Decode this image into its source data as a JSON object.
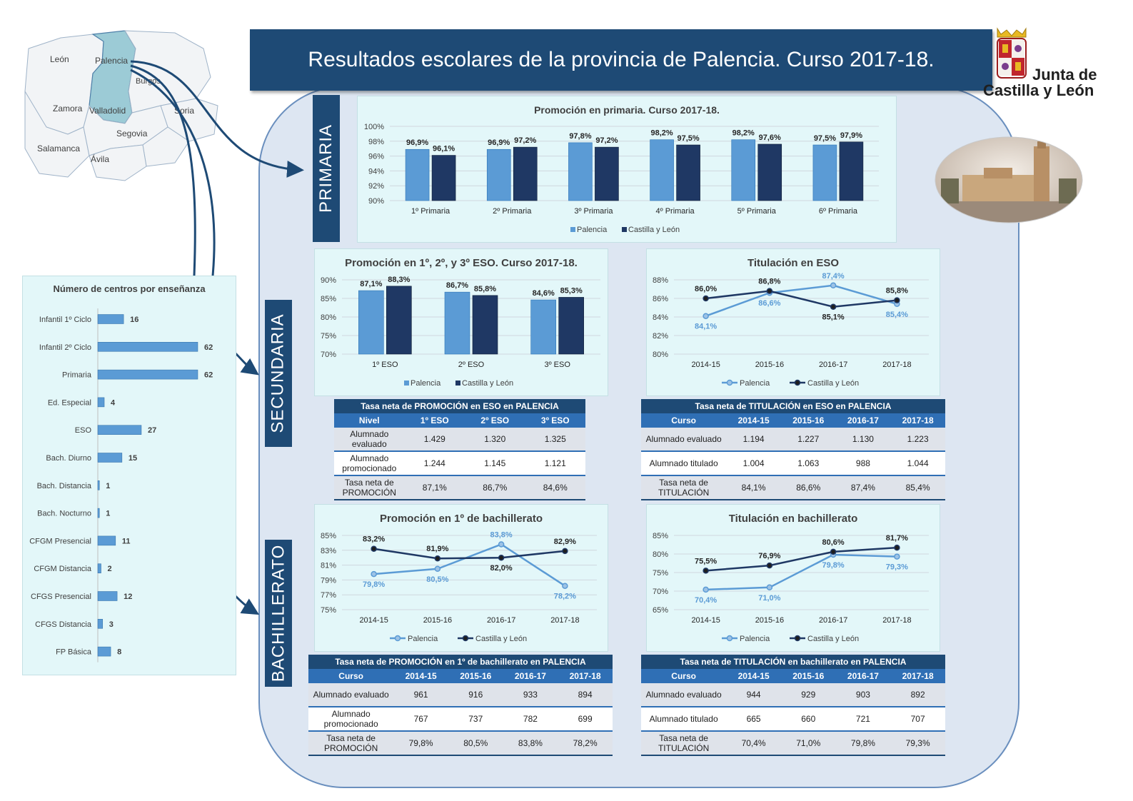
{
  "header": {
    "title": "Resultados escolares de la provincia de Palencia. Curso 2017-18."
  },
  "logo": {
    "line1": "Junta de",
    "line2": "Castilla y León"
  },
  "map": {
    "regions": [
      "León",
      "Palencia",
      "Burgos",
      "Zamora",
      "Valladolid",
      "Soria",
      "Segovia",
      "Salamanca",
      "Ávila"
    ]
  },
  "sections": {
    "primaria": "PRIMARIA",
    "secundaria": "SECUNDARIA",
    "bachillerato": "BACHILLERATO"
  },
  "colors": {
    "palencia": "#5b9bd5",
    "cyl": "#1f3864",
    "header": "#1e4a75",
    "panel": "#e3f7f9"
  },
  "legend": {
    "palencia": "Palencia",
    "cyl": "Castilla y León"
  },
  "chart_data": [
    {
      "id": "centros",
      "type": "bar",
      "orientation": "horizontal",
      "title": "Número de centros por enseñanza",
      "categories": [
        "Infantil 1º Ciclo",
        "Infantil 2º Ciclo",
        "Primaria",
        "Ed. Especial",
        "ESO",
        "Bach. Diurno",
        "Bach. Distancia",
        "Bach. Nocturno",
        "CFGM Presencial",
        "CFGM Distancia",
        "CFGS Presencial",
        "CFGS Distancia",
        "FP Básica"
      ],
      "values": [
        16,
        62,
        62,
        4,
        27,
        15,
        1,
        1,
        11,
        2,
        12,
        3,
        8
      ]
    },
    {
      "id": "primaria",
      "type": "bar",
      "title": "Promoción en primaria. Curso 2017-18.",
      "categories": [
        "1º Primaria",
        "2º Primaria",
        "3º Primaria",
        "4º Primaria",
        "5º Primaria",
        "6º Primaria"
      ],
      "series": [
        {
          "name": "Palencia",
          "values": [
            96.9,
            96.9,
            97.8,
            98.2,
            98.2,
            97.5
          ]
        },
        {
          "name": "Castilla y León",
          "values": [
            96.1,
            97.2,
            97.2,
            97.5,
            97.6,
            97.9
          ]
        }
      ],
      "labels": [
        [
          "96,9%",
          "96,9%",
          "97,8%",
          "98,2%",
          "98,2%",
          "97,5%"
        ],
        [
          "96,1%",
          "97,2%",
          "97,2%",
          "97,5%",
          "97,6%",
          "97,9%"
        ]
      ],
      "yticks": [
        "90%",
        "92%",
        "94%",
        "96%",
        "98%",
        "100%"
      ],
      "ylim": [
        90,
        100
      ]
    },
    {
      "id": "eso_prom",
      "type": "bar",
      "title": "Promoción en 1º, 2º, y 3º ESO. Curso 2017-18.",
      "categories": [
        "1º ESO",
        "2º ESO",
        "3º ESO"
      ],
      "series": [
        {
          "name": "Palencia",
          "values": [
            87.1,
            86.7,
            84.6
          ]
        },
        {
          "name": "Castilla y León",
          "values": [
            88.3,
            85.8,
            85.3
          ]
        }
      ],
      "labels": [
        [
          "87,1%",
          "86,7%",
          "84,6%"
        ],
        [
          "88,3%",
          "85,8%",
          "85,3%"
        ]
      ],
      "yticks": [
        "70%",
        "75%",
        "80%",
        "85%",
        "90%"
      ],
      "ylim": [
        70,
        90
      ]
    },
    {
      "id": "eso_tit",
      "type": "line",
      "title": "Titulación en ESO",
      "categories": [
        "2014-15",
        "2015-16",
        "2016-17",
        "2017-18"
      ],
      "series": [
        {
          "name": "Palencia",
          "values": [
            84.1,
            86.6,
            87.4,
            85.4
          ]
        },
        {
          "name": "Castilla y León",
          "values": [
            86.0,
            86.8,
            85.1,
            85.8
          ]
        }
      ],
      "labels": [
        [
          "84,1%",
          "86,6%",
          "87,4%",
          "85,4%"
        ],
        [
          "86,0%",
          "86,8%",
          "85,1%",
          "85,8%"
        ]
      ],
      "yticks": [
        "80%",
        "82%",
        "84%",
        "86%",
        "88%"
      ],
      "ylim": [
        80,
        88
      ]
    },
    {
      "id": "bach_prom",
      "type": "line",
      "title": "Promoción en 1º de bachillerato",
      "categories": [
        "2014-15",
        "2015-16",
        "2016-17",
        "2017-18"
      ],
      "series": [
        {
          "name": "Palencia",
          "values": [
            79.8,
            80.5,
            83.8,
            78.2
          ]
        },
        {
          "name": "Castilla y León",
          "values": [
            83.2,
            81.9,
            82.0,
            82.9
          ]
        }
      ],
      "labels": [
        [
          "79,8%",
          "80,5%",
          "83,8%",
          "78,2%"
        ],
        [
          "83,2%",
          "81,9%",
          "82,0%",
          "82,9%"
        ]
      ],
      "yticks": [
        "75%",
        "77%",
        "79%",
        "81%",
        "83%",
        "85%"
      ],
      "ylim": [
        75,
        85
      ]
    },
    {
      "id": "bach_tit",
      "type": "line",
      "title": "Titulación en bachillerato",
      "categories": [
        "2014-15",
        "2015-16",
        "2016-17",
        "2017-18"
      ],
      "series": [
        {
          "name": "Palencia",
          "values": [
            70.4,
            71.0,
            79.8,
            79.3
          ]
        },
        {
          "name": "Castilla y León",
          "values": [
            75.5,
            76.9,
            80.6,
            81.7
          ]
        }
      ],
      "labels": [
        [
          "70,4%",
          "71,0%",
          "79,8%",
          "79,3%"
        ],
        [
          "75,5%",
          "76,9%",
          "80,6%",
          "81,7%"
        ]
      ],
      "yticks": [
        "65%",
        "70%",
        "75%",
        "80%",
        "85%"
      ],
      "ylim": [
        65,
        85
      ]
    }
  ],
  "tables": {
    "eso_prom": {
      "caption": "Tasa neta de PROMOCIÓN en ESO en PALENCIA",
      "header": [
        "Nivel",
        "1º ESO",
        "2º ESO",
        "3º ESO"
      ],
      "rows": [
        [
          "Alumnado evaluado",
          "1.429",
          "1.320",
          "1.325"
        ],
        [
          "Alumnado promocionado",
          "1.244",
          "1.145",
          "1.121"
        ],
        [
          "Tasa neta de PROMOCIÓN",
          "87,1%",
          "86,7%",
          "84,6%"
        ]
      ]
    },
    "eso_tit": {
      "caption": "Tasa neta de TITULACIÓN en ESO en PALENCIA",
      "header": [
        "Curso",
        "2014-15",
        "2015-16",
        "2016-17",
        "2017-18"
      ],
      "rows": [
        [
          "Alumnado evaluado",
          "1.194",
          "1.227",
          "1.130",
          "1.223"
        ],
        [
          "Alumnado titulado",
          "1.004",
          "1.063",
          "988",
          "1.044"
        ],
        [
          "Tasa neta de TITULACIÓN",
          "84,1%",
          "86,6%",
          "87,4%",
          "85,4%"
        ]
      ]
    },
    "bach_prom": {
      "caption": "Tasa neta de PROMOCIÓN en 1º de bachillerato en PALENCIA",
      "header": [
        "Curso",
        "2014-15",
        "2015-16",
        "2016-17",
        "2017-18"
      ],
      "rows": [
        [
          "Alumnado evaluado",
          "961",
          "916",
          "933",
          "894"
        ],
        [
          "Alumnado promocionado",
          "767",
          "737",
          "782",
          "699"
        ],
        [
          "Tasa neta de PROMOCIÓN",
          "79,8%",
          "80,5%",
          "83,8%",
          "78,2%"
        ]
      ]
    },
    "bach_tit": {
      "caption": "Tasa neta de TITULACIÓN en bachillerato en PALENCIA",
      "header": [
        "Curso",
        "2014-15",
        "2015-16",
        "2016-17",
        "2017-18"
      ],
      "rows": [
        [
          "Alumnado evaluado",
          "944",
          "929",
          "903",
          "892"
        ],
        [
          "Alumnado titulado",
          "665",
          "660",
          "721",
          "707"
        ],
        [
          "Tasa neta de TITULACIÓN",
          "70,4%",
          "71,0%",
          "79,8%",
          "79,3%"
        ]
      ]
    }
  }
}
